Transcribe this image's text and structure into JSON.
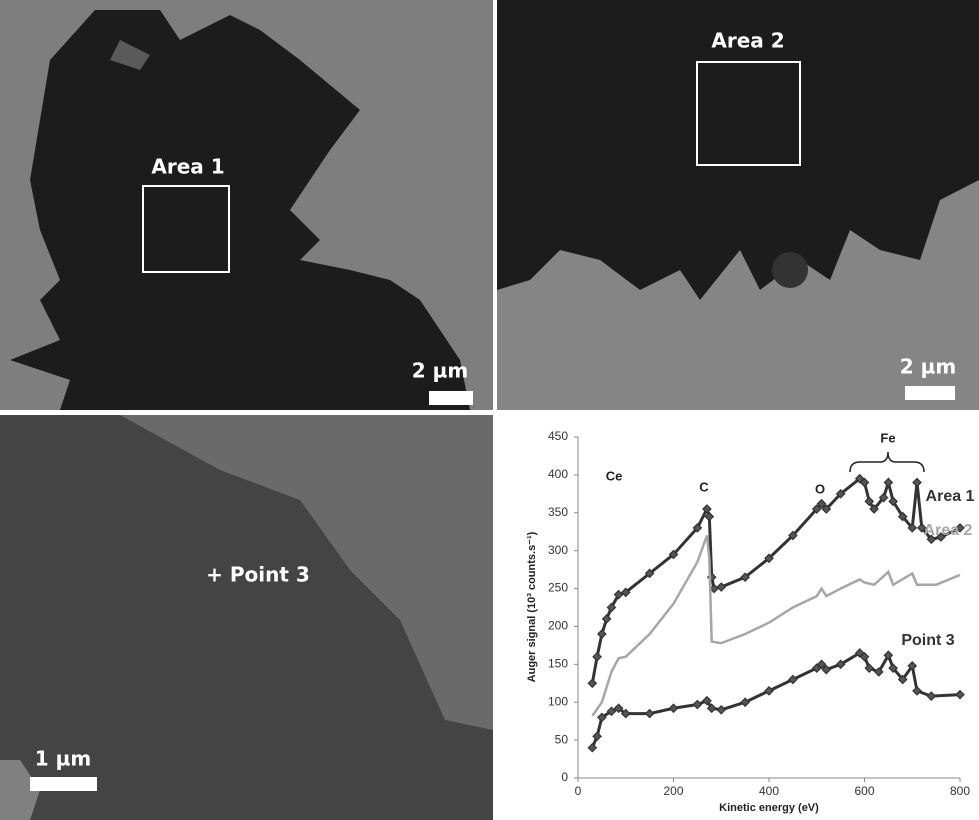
{
  "panels": [
    {
      "label": "Area 1",
      "scale_bar": "2 µm"
    },
    {
      "label": "Area 2",
      "scale_bar": "2 µm"
    },
    {
      "label": "+ Point 3",
      "scale_bar": "1 µm"
    }
  ],
  "chart_data": {
    "type": "line",
    "x_label": "Kinetic energy (eV)",
    "y_label": "Auger signal (10³ counts.s⁻¹)",
    "annotations": [
      "Ce",
      "C",
      "O",
      "Fe"
    ],
    "xlim": [
      0,
      800
    ],
    "xticks": [
      0,
      200,
      400,
      600,
      800
    ],
    "ylim": [
      0,
      450
    ],
    "yticks": [
      0,
      50,
      100,
      150,
      200,
      250,
      300,
      350,
      400,
      450
    ],
    "grid": false,
    "series": [
      {
        "name": "Area 1",
        "color": "#333333",
        "marker": "diamond",
        "x": [
          30,
          40,
          50,
          60,
          70,
          85,
          100,
          150,
          200,
          250,
          270,
          275,
          280,
          285,
          300,
          350,
          400,
          450,
          500,
          510,
          520,
          550,
          590,
          600,
          610,
          620,
          640,
          650,
          660,
          680,
          700,
          710,
          720,
          740,
          760,
          800
        ],
        "values": [
          125,
          160,
          190,
          210,
          225,
          242,
          245,
          270,
          295,
          330,
          355,
          345,
          265,
          250,
          252,
          265,
          290,
          320,
          355,
          362,
          355,
          375,
          395,
          390,
          365,
          355,
          370,
          390,
          365,
          345,
          330,
          390,
          330,
          315,
          318,
          330
        ]
      },
      {
        "name": "Area 2",
        "color": "#a6a6a6",
        "x": [
          30,
          50,
          70,
          85,
          100,
          150,
          200,
          250,
          270,
          275,
          280,
          300,
          350,
          400,
          450,
          500,
          510,
          520,
          550,
          590,
          600,
          620,
          650,
          660,
          700,
          710,
          750,
          800
        ],
        "values": [
          82,
          100,
          140,
          158,
          160,
          190,
          230,
          285,
          320,
          290,
          180,
          178,
          190,
          205,
          225,
          240,
          250,
          240,
          250,
          262,
          258,
          255,
          272,
          255,
          270,
          255,
          255,
          268
        ]
      },
      {
        "name": "Point 3",
        "color": "#333333",
        "marker": "diamond",
        "x": [
          30,
          40,
          50,
          70,
          85,
          100,
          150,
          200,
          250,
          270,
          280,
          300,
          350,
          400,
          450,
          500,
          510,
          520,
          550,
          590,
          600,
          610,
          630,
          650,
          660,
          680,
          700,
          710,
          740,
          800
        ],
        "values": [
          40,
          55,
          80,
          88,
          92,
          85,
          85,
          92,
          97,
          102,
          92,
          90,
          100,
          115,
          130,
          145,
          150,
          143,
          150,
          165,
          160,
          145,
          140,
          162,
          145,
          130,
          148,
          115,
          108,
          110
        ]
      }
    ]
  }
}
